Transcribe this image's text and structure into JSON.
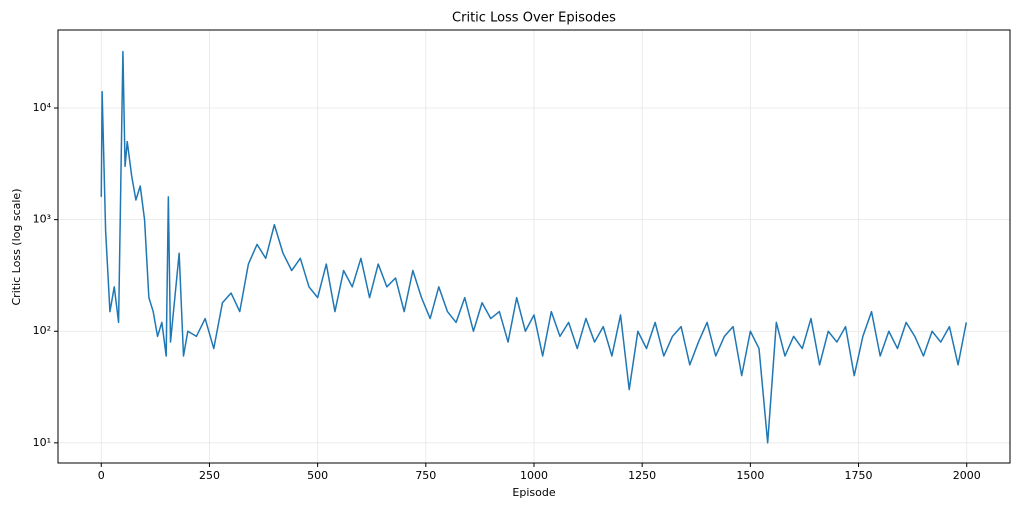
{
  "chart_data": {
    "type": "line",
    "title": "Critic Loss Over Episodes",
    "x_label": "Episode",
    "y_label": "Critic Loss (log scale)",
    "log_y": true,
    "grid": true,
    "xlim": [
      -100,
      2100
    ],
    "xticks": [
      0,
      250,
      500,
      750,
      1000,
      1250,
      1500,
      1750,
      2000
    ],
    "ylim": [
      6.6,
      50000
    ],
    "yticks": [
      {
        "value": 10,
        "label": "10¹"
      },
      {
        "value": 100,
        "label": "10²"
      },
      {
        "value": 1000,
        "label": "10³"
      },
      {
        "value": 10000,
        "label": "10⁴"
      }
    ],
    "x": [
      0,
      2,
      10,
      20,
      30,
      40,
      50,
      55,
      60,
      70,
      80,
      90,
      100,
      110,
      120,
      130,
      140,
      150,
      155,
      160,
      170,
      180,
      190,
      200,
      220,
      240,
      260,
      280,
      300,
      320,
      340,
      360,
      380,
      400,
      420,
      440,
      460,
      480,
      500,
      520,
      540,
      560,
      580,
      600,
      620,
      640,
      660,
      680,
      700,
      720,
      740,
      760,
      780,
      800,
      820,
      840,
      860,
      880,
      900,
      920,
      940,
      960,
      980,
      1000,
      1020,
      1040,
      1060,
      1080,
      1100,
      1120,
      1140,
      1160,
      1180,
      1200,
      1220,
      1240,
      1260,
      1280,
      1300,
      1320,
      1340,
      1360,
      1380,
      1400,
      1420,
      1440,
      1460,
      1480,
      1500,
      1520,
      1540,
      1560,
      1580,
      1600,
      1620,
      1640,
      1660,
      1680,
      1700,
      1720,
      1740,
      1760,
      1780,
      1800,
      1820,
      1840,
      1860,
      1880,
      1900,
      1920,
      1940,
      1960,
      1980,
      1999
    ],
    "series": [
      {
        "name": "Critic Loss",
        "color": "#1f77b4",
        "values": [
          1600,
          14000,
          800,
          150,
          250,
          120,
          32000,
          3000,
          5000,
          2500,
          1500,
          2000,
          1000,
          200,
          150,
          90,
          120,
          60,
          1600,
          80,
          200,
          500,
          60,
          100,
          90,
          130,
          70,
          180,
          220,
          150,
          400,
          600,
          450,
          900,
          500,
          350,
          450,
          250,
          200,
          400,
          150,
          350,
          250,
          450,
          200,
          400,
          250,
          300,
          150,
          350,
          200,
          130,
          250,
          150,
          120,
          200,
          100,
          180,
          130,
          150,
          80,
          200,
          100,
          140,
          60,
          150,
          90,
          120,
          70,
          130,
          80,
          110,
          60,
          140,
          30,
          100,
          70,
          120,
          60,
          90,
          110,
          50,
          80,
          120,
          60,
          90,
          110,
          40,
          100,
          70,
          10,
          120,
          60,
          90,
          70,
          130,
          50,
          100,
          80,
          110,
          40,
          90,
          150,
          60,
          100,
          70,
          120,
          90,
          60,
          100,
          80,
          110,
          50,
          120
        ]
      }
    ]
  }
}
